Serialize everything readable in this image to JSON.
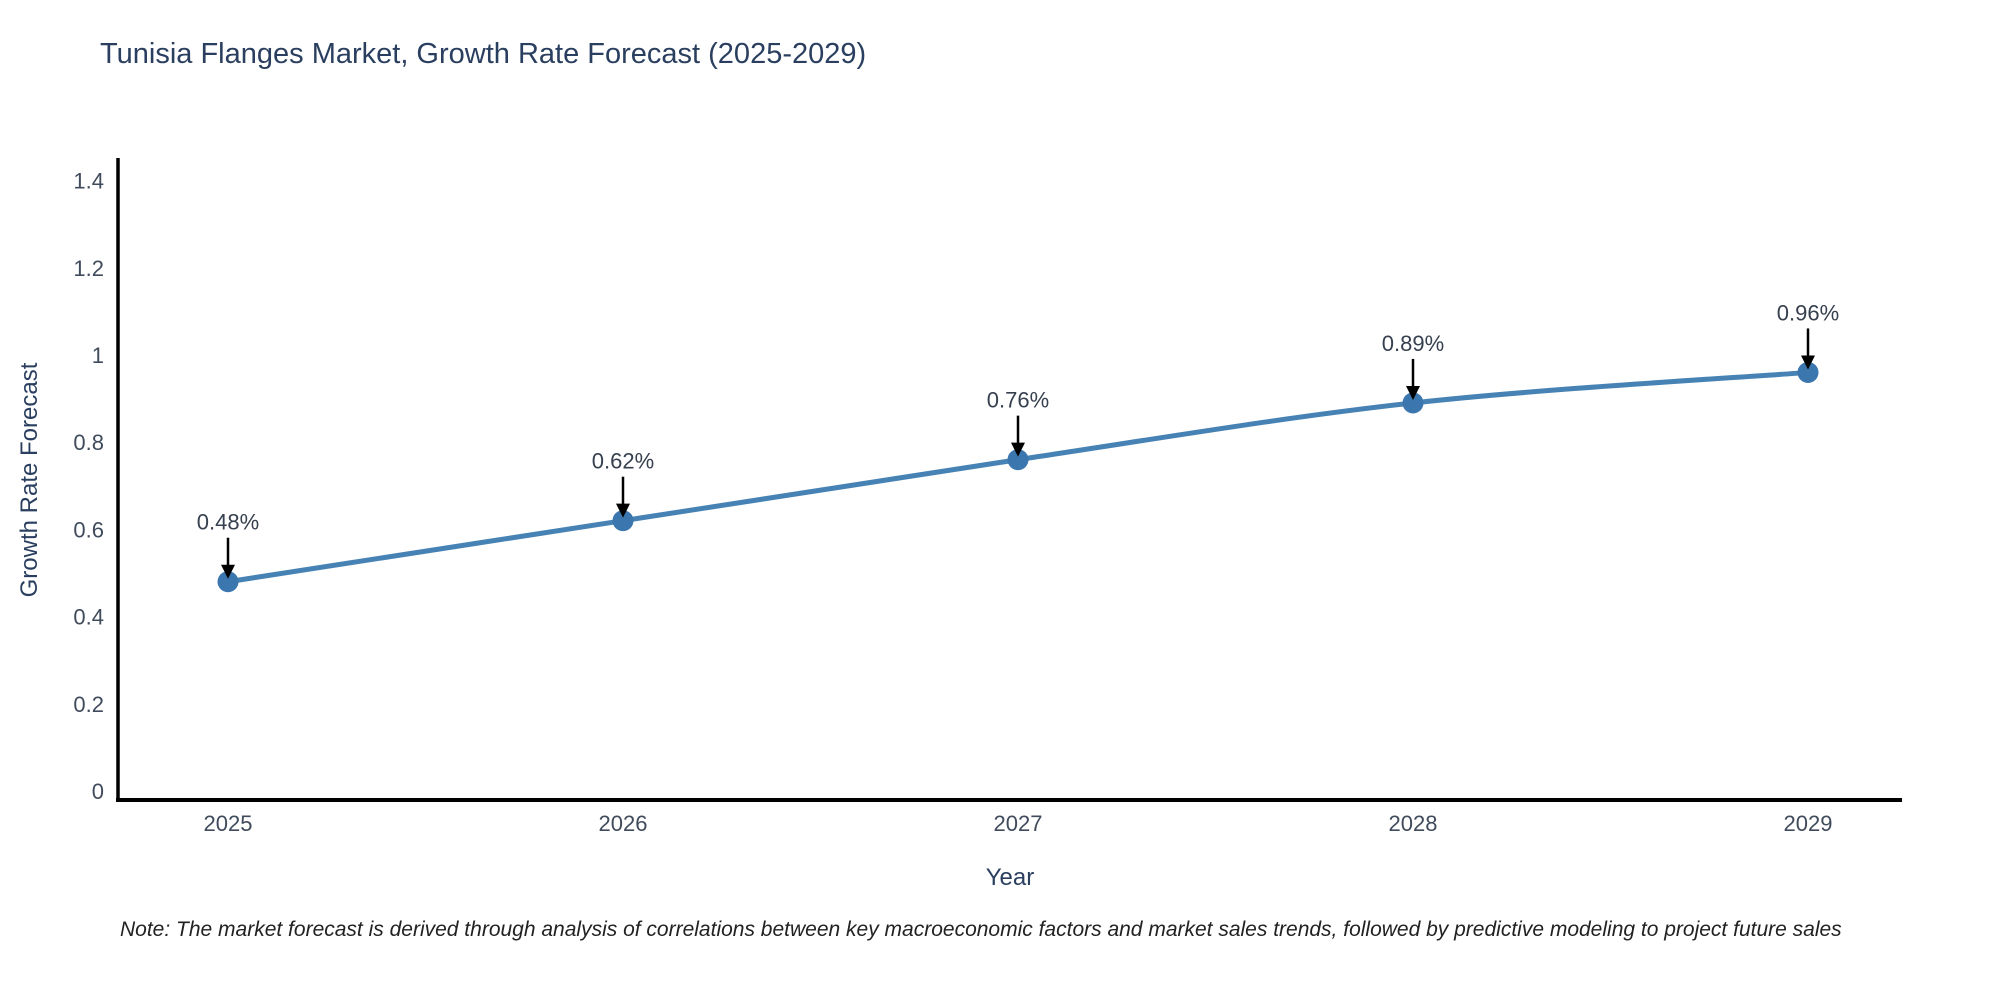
{
  "page": {
    "note": "Note: The market forecast is derived through analysis of correlations between key macroeconomic factors and market sales trends, followed by predictive modeling to project future sales"
  },
  "chart_data": {
    "type": "line",
    "title": "Tunisia Flanges Market, Growth Rate Forecast (2025-2029)",
    "xlabel": "Year",
    "ylabel": "Growth Rate Forecast",
    "categories": [
      "2025",
      "2026",
      "2027",
      "2028",
      "2029"
    ],
    "values": [
      0.48,
      0.62,
      0.76,
      0.89,
      0.96
    ],
    "point_labels": [
      "0.48%",
      "0.62%",
      "0.76%",
      "0.89%",
      "0.96%"
    ],
    "ytick_labels": [
      "0",
      "0.2",
      "0.4",
      "0.6",
      "0.8",
      "1",
      "1.2",
      "1.4"
    ],
    "ylim": [
      0,
      1.47
    ],
    "grid": false,
    "legend": "none",
    "colors": {
      "line": "#4682b4",
      "marker": "#3c76ae",
      "arrow": "#000000",
      "axis": "#000000",
      "title": "#2a3f5f",
      "tick": "#404b5c",
      "annotation": "#37404f",
      "note": "#222222"
    }
  }
}
